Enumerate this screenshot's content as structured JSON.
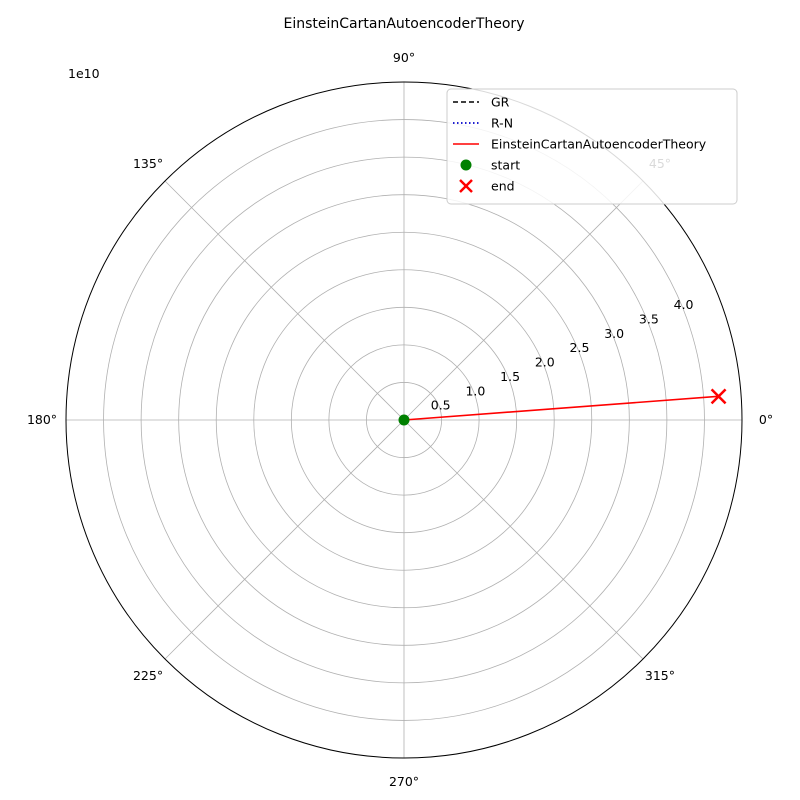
{
  "chart_data": {
    "type": "line",
    "projection": "polar",
    "title": "EinsteinCartanAutoencoderTheory",
    "r_scale_label": "1e10",
    "r_ticks": [
      0.5,
      1.0,
      1.5,
      2.0,
      2.5,
      3.0,
      3.5,
      4.0
    ],
    "r_tick_labels": [
      "0.5",
      "1.0",
      "1.5",
      "2.0",
      "2.5",
      "3.0",
      "3.5",
      "4.0"
    ],
    "rlim": [
      0,
      4.5
    ],
    "theta_ticks_deg": [
      0,
      45,
      90,
      135,
      180,
      225,
      270,
      315
    ],
    "theta_tick_labels": [
      "0°",
      "45°",
      "90°",
      "135°",
      "180°",
      "225°",
      "270°",
      "315°"
    ],
    "grid": true,
    "legend_position": "top-right",
    "legend": [
      {
        "label": "GR",
        "style": "dashed",
        "color": "#000000"
      },
      {
        "label": "R-N",
        "style": "dotted",
        "color": "#0000cc"
      },
      {
        "label": "EinsteinCartanAutoencoderTheory",
        "style": "solid",
        "color": "#ff0000"
      },
      {
        "label": "start",
        "style": "circle-marker",
        "color": "#008000"
      },
      {
        "label": "end",
        "style": "x-marker",
        "color": "#ff0000"
      }
    ],
    "series": [
      {
        "name": "EinsteinCartanAutoencoderTheory",
        "color": "#ff0000",
        "points": [
          {
            "theta_deg": 0,
            "r": 0
          },
          {
            "theta_deg": 4.3,
            "r": 4.2
          }
        ]
      }
    ],
    "start_point": {
      "theta_deg": 0,
      "r": 0
    },
    "end_point": {
      "theta_deg": 4.3,
      "r": 4.2
    }
  }
}
